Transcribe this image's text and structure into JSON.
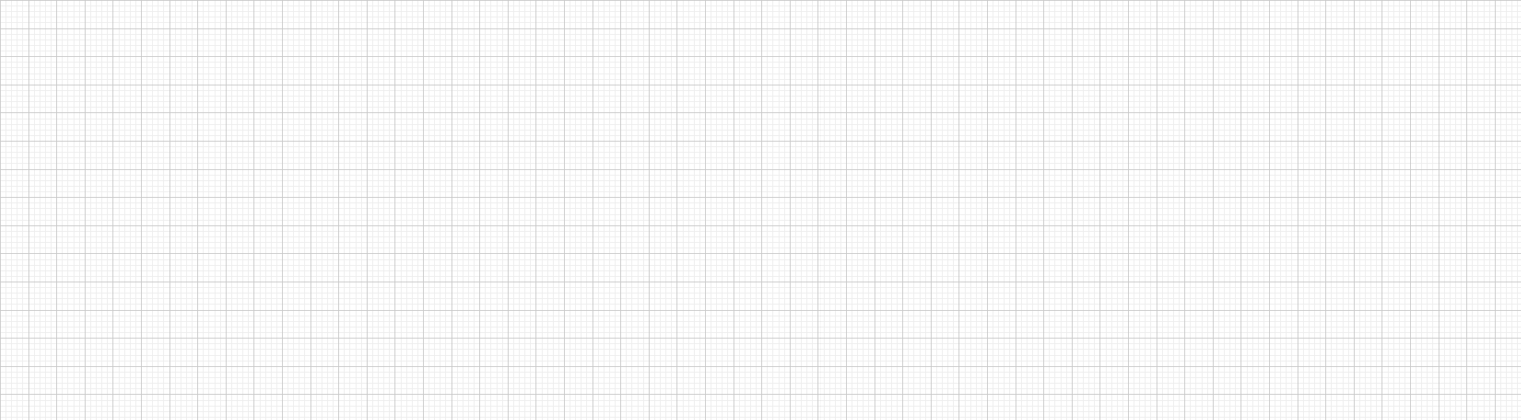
{
  "grid": {
    "background_color": "#ffffff",
    "major_line_color": "#c9c9c9",
    "minor_line_color": "#ededed",
    "subdivisions_per_cell": 5,
    "major_lines_visible": true,
    "minor_lines_visible": true
  }
}
